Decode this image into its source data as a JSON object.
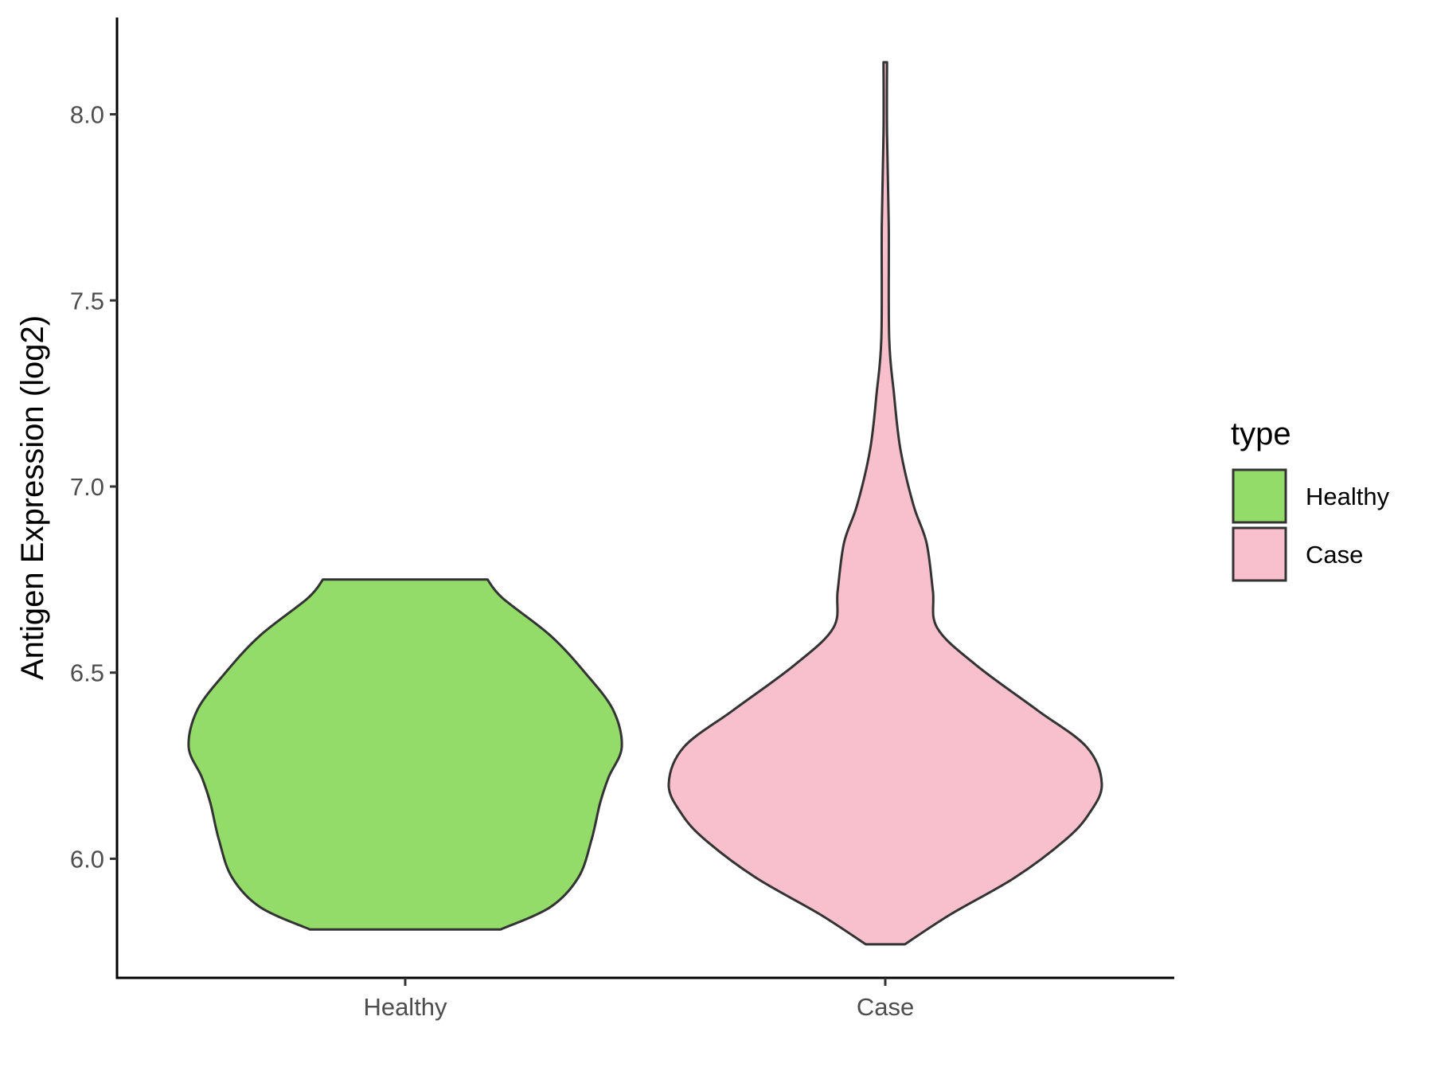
{
  "chart_data": {
    "type": "violin",
    "categories": [
      "Healthy",
      "Case"
    ],
    "ylabel": "Antigen Expression (log2)",
    "xlabel": "",
    "ylim": [
      5.68,
      8.26
    ],
    "y_ticks": [
      6.0,
      6.5,
      7.0,
      7.5,
      8.0
    ],
    "y_tick_labels": [
      "6.0",
      "6.5",
      "7.0",
      "7.5",
      "8.0"
    ],
    "legend": {
      "title": "type",
      "position": "right",
      "entries": [
        {
          "label": "Healthy",
          "color": "#93dc6a"
        },
        {
          "label": "Case",
          "color": "#f8c0cc"
        }
      ]
    },
    "grid": false,
    "series": [
      {
        "name": "Healthy",
        "color": "#93dc6a",
        "y_min": 5.81,
        "y_max": 6.75,
        "density_profile": [
          {
            "y": 5.81,
            "half_width": 0.44
          },
          {
            "y": 5.87,
            "half_width": 0.67
          },
          {
            "y": 5.95,
            "half_width": 0.8
          },
          {
            "y": 6.05,
            "half_width": 0.86
          },
          {
            "y": 6.15,
            "half_width": 0.9
          },
          {
            "y": 6.22,
            "half_width": 0.94
          },
          {
            "y": 6.3,
            "half_width": 1.0
          },
          {
            "y": 6.4,
            "half_width": 0.96
          },
          {
            "y": 6.5,
            "half_width": 0.83
          },
          {
            "y": 6.6,
            "half_width": 0.67
          },
          {
            "y": 6.7,
            "half_width": 0.45
          },
          {
            "y": 6.75,
            "half_width": 0.38
          }
        ]
      },
      {
        "name": "Case",
        "color": "#f8c0cc",
        "y_min": 5.77,
        "y_max": 8.14,
        "density_profile": [
          {
            "y": 5.77,
            "half_width": 0.09
          },
          {
            "y": 5.85,
            "half_width": 0.3
          },
          {
            "y": 5.95,
            "half_width": 0.6
          },
          {
            "y": 6.05,
            "half_width": 0.83
          },
          {
            "y": 6.12,
            "half_width": 0.94
          },
          {
            "y": 6.2,
            "half_width": 1.0
          },
          {
            "y": 6.3,
            "half_width": 0.93
          },
          {
            "y": 6.4,
            "half_width": 0.7
          },
          {
            "y": 6.52,
            "half_width": 0.42
          },
          {
            "y": 6.62,
            "half_width": 0.24
          },
          {
            "y": 6.72,
            "half_width": 0.22
          },
          {
            "y": 6.85,
            "half_width": 0.19
          },
          {
            "y": 6.95,
            "half_width": 0.13
          },
          {
            "y": 7.1,
            "half_width": 0.07
          },
          {
            "y": 7.25,
            "half_width": 0.04
          },
          {
            "y": 7.4,
            "half_width": 0.018
          },
          {
            "y": 7.7,
            "half_width": 0.016
          },
          {
            "y": 7.95,
            "half_width": 0.008
          },
          {
            "y": 8.14,
            "half_width": 0.008
          }
        ]
      }
    ]
  }
}
